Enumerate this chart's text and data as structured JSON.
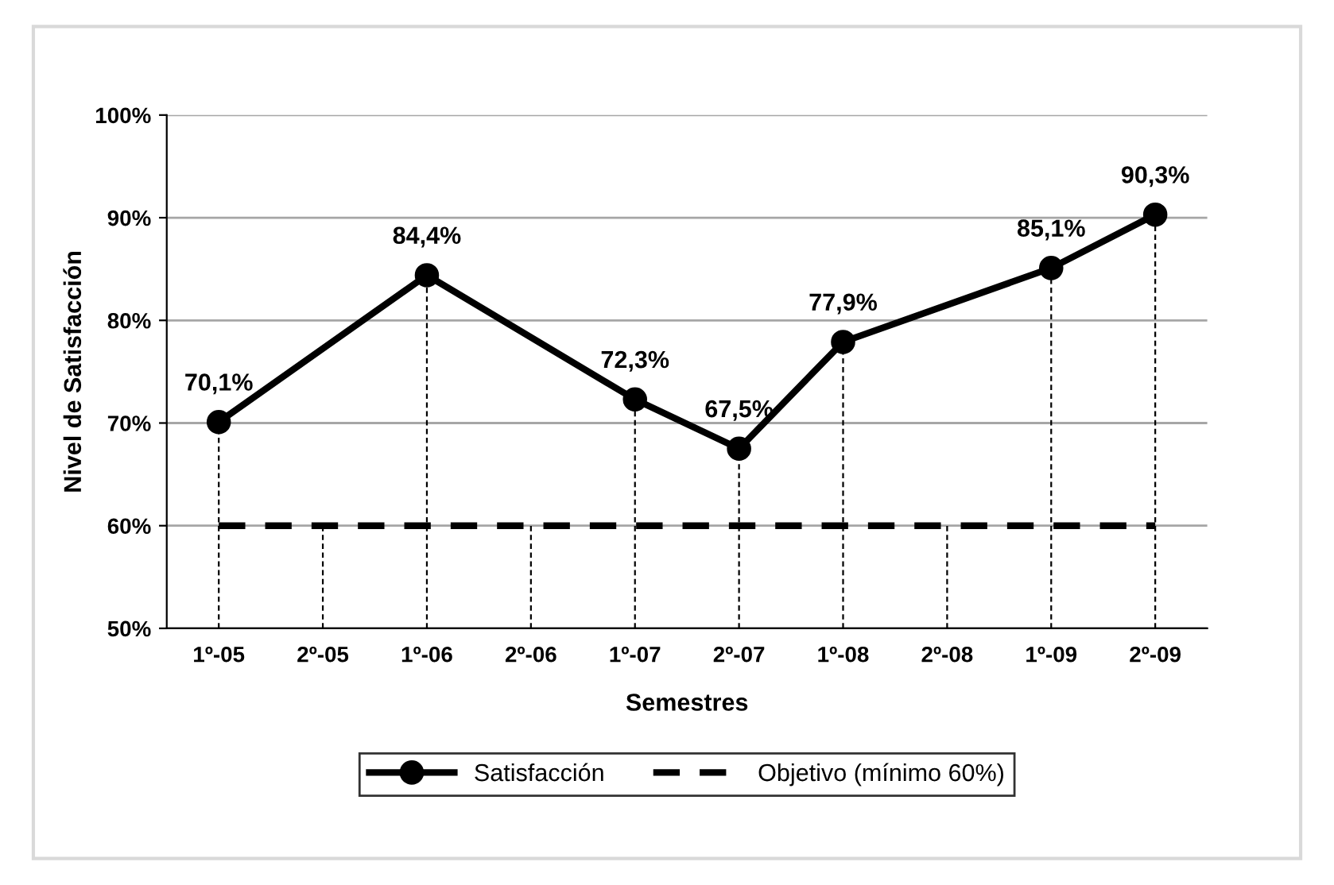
{
  "chart_data": {
    "type": "line",
    "xlabel": "Semestres",
    "ylabel": "Nivel de Satisfacción",
    "categories": [
      "1º-05",
      "2º-05",
      "1º-06",
      "2º-06",
      "1º-07",
      "2º-07",
      "1º-08",
      "2º-08",
      "1º-09",
      "2º-09"
    ],
    "series": [
      {
        "name": "Satisfacción",
        "color": "#000000",
        "marker": "circle",
        "line_style": "solid",
        "values": [
          70.1,
          null,
          84.4,
          null,
          72.3,
          67.5,
          77.9,
          null,
          85.1,
          90.3
        ],
        "value_labels": [
          "70,1%",
          null,
          "84,4%",
          null,
          "72,3%",
          "67,5%",
          "77,9%",
          null,
          "85,1%",
          "90,3%"
        ],
        "errors": [
          [
            50,
            70.1
          ],
          null,
          [
            50,
            84.4
          ],
          null,
          [
            50,
            72.3
          ],
          [
            50,
            67.5
          ],
          [
            50,
            77.9
          ],
          null,
          [
            50,
            85.1
          ],
          [
            50,
            90.3
          ]
        ]
      },
      {
        "name": "Objetivo (mínimo 60%)",
        "color": "#000000",
        "marker": "none",
        "line_style": "dashed",
        "values": [
          60,
          60,
          60,
          60,
          60,
          60,
          60,
          60,
          60,
          60
        ],
        "errors": [
          null,
          [
            50,
            60
          ],
          null,
          [
            50,
            60
          ],
          null,
          null,
          null,
          [
            50,
            60
          ],
          null,
          null
        ]
      }
    ],
    "ylim": [
      50,
      100
    ],
    "yticks": [
      {
        "value": 50,
        "label": "50%"
      },
      {
        "value": 60,
        "label": "60%"
      },
      {
        "value": 70,
        "label": "70%"
      },
      {
        "value": 80,
        "label": "80%"
      },
      {
        "value": 90,
        "label": "90%"
      },
      {
        "value": 100,
        "label": "100%"
      }
    ],
    "grid": "y",
    "legend": "bottom"
  }
}
